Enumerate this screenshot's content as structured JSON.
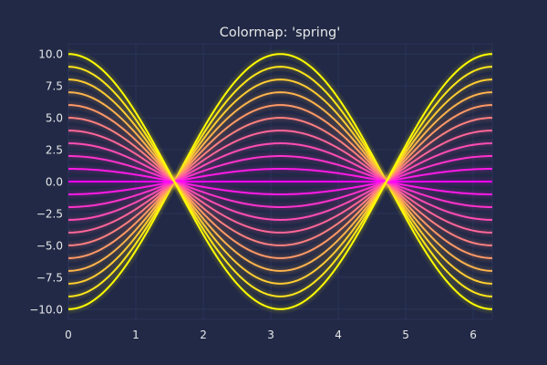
{
  "chart_data": {
    "type": "line",
    "title": "Colormap: 'spring'",
    "xlabel": "",
    "ylabel": "",
    "xlim": [
      0,
      6.2832
    ],
    "ylim": [
      -10.8,
      10.8
    ],
    "x_ticks": [
      0,
      1,
      2,
      3,
      4,
      5,
      6
    ],
    "x_tick_labels": [
      "0",
      "1",
      "2",
      "3",
      "4",
      "5",
      "6"
    ],
    "y_ticks": [
      10,
      7.5,
      5,
      2.5,
      0,
      -2.5,
      -5,
      -7.5,
      -10
    ],
    "y_tick_labels": [
      "10.0",
      "7.5",
      "5.0",
      "2.5",
      "0.0",
      "−2.5",
      "−5.0",
      "−7.5",
      "−10.0"
    ],
    "grid": true,
    "colormap": "spring",
    "colormap_start": "#ff00ff",
    "colormap_end": "#ffff00",
    "background_color": "#212946",
    "glow": true,
    "function": "y = a * cos(x)",
    "x_range": [
      0,
      6.2832
    ],
    "amplitudes": [
      -10,
      -9,
      -8,
      -7,
      -6,
      -5,
      -4,
      -3,
      -2,
      -1,
      0,
      1,
      2,
      3,
      4,
      5,
      6,
      7,
      8,
      9,
      10
    ]
  }
}
